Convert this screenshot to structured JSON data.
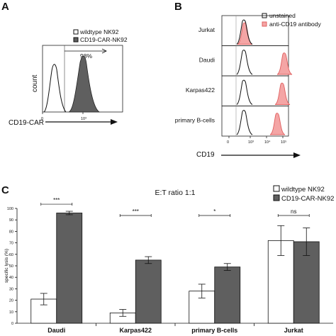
{
  "panels": {
    "a": "A",
    "b": "B",
    "c": "C"
  },
  "panel_a": {
    "legend": [
      "wildtype NK92",
      "CD19-CAR-NK92"
    ],
    "gate_label": "98%",
    "ylabel": "count",
    "xlabel": "CD19-CAR",
    "tick_labels": [
      "0",
      "10³"
    ]
  },
  "panel_b": {
    "legend": [
      "unstained",
      "anti-CD19 antibody"
    ],
    "rows": [
      "Jurkat",
      "Daudi",
      "Karpas422",
      "primary B-cells"
    ],
    "xlabel": "CD19",
    "tick_labels": [
      "0",
      "10³",
      "10⁴",
      "10⁵"
    ]
  },
  "chart_data": {
    "type": "bar",
    "title": "E:T ratio 1:1",
    "xlabel": "",
    "ylabel": "specific lysis (%)",
    "ylim": [
      0,
      100
    ],
    "yticks": [
      0,
      10,
      20,
      30,
      40,
      50,
      60,
      70,
      80,
      90,
      100
    ],
    "categories": [
      "Daudi",
      "Karpas422",
      "primary B-cells",
      "Jurkat"
    ],
    "series": [
      {
        "name": "wildtype NK92",
        "values": [
          21,
          9,
          28,
          72
        ],
        "errors": [
          5,
          3,
          6,
          13
        ],
        "color": "#ffffff"
      },
      {
        "name": "CD19-CAR-NK92",
        "values": [
          96,
          55,
          49,
          71
        ],
        "errors": [
          1.5,
          3,
          3,
          12
        ],
        "color": "#5f5f5f"
      }
    ],
    "significance": [
      "***",
      "***",
      "*",
      "ns"
    ],
    "legend_position": "top-right"
  },
  "colors": {
    "car_fill": "#5f5f5f",
    "antibody_fill": "#f4a5a5",
    "antibody_line": "#e06060"
  }
}
